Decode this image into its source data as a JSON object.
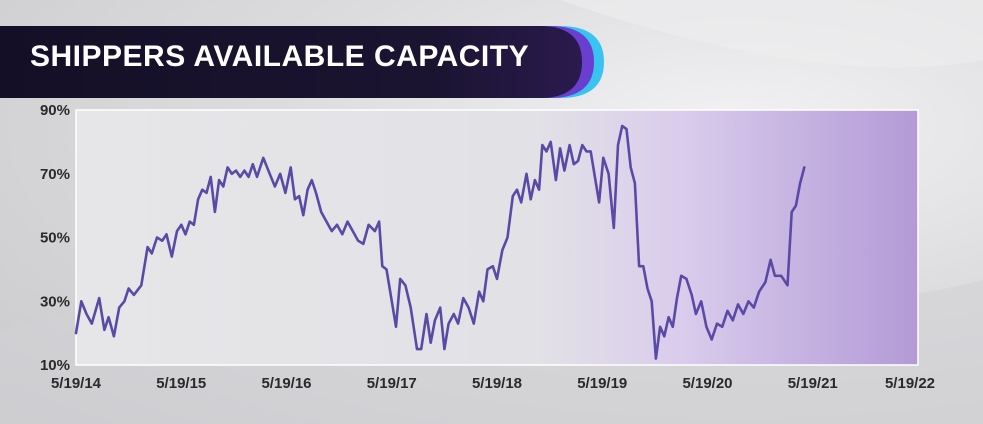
{
  "header": {
    "title": "SHIPPERS AVAILABLE CAPACITY"
  },
  "colors": {
    "line": "#5a4aa6",
    "title_bar": "#1b1431",
    "title_accent": "#3ec7f2",
    "highlight": "#a98fd0"
  },
  "chart_data": {
    "type": "line",
    "title": "SHIPPERS AVAILABLE CAPACITY",
    "xlabel": "",
    "ylabel": "",
    "ylim": [
      10,
      90
    ],
    "xlim": [
      0,
      8
    ],
    "grid": false,
    "legend": "none",
    "y_ticks": [
      10,
      30,
      50,
      70,
      90
    ],
    "y_tick_labels": [
      "10%",
      "30%",
      "50%",
      "70%",
      "90%"
    ],
    "x_ticks": [
      0,
      1,
      2,
      3,
      4,
      5,
      6,
      7,
      8
    ],
    "x_tick_labels": [
      "5/19/14",
      "5/19/15",
      "5/19/16",
      "5/19/17",
      "5/19/18",
      "5/19/19",
      "5/19/20",
      "5/19/21",
      "5/19/22"
    ],
    "x_unit": "years since 5/19/14",
    "shaded_region": {
      "from": 5.8,
      "to": 8.0
    },
    "series": [
      {
        "values": [
          [
            0.0,
            20
          ],
          [
            0.05,
            30
          ],
          [
            0.1,
            26
          ],
          [
            0.15,
            23
          ],
          [
            0.22,
            31
          ],
          [
            0.27,
            21
          ],
          [
            0.31,
            25
          ],
          [
            0.36,
            19
          ],
          [
            0.41,
            28
          ],
          [
            0.46,
            30
          ],
          [
            0.5,
            34
          ],
          [
            0.55,
            32
          ],
          [
            0.62,
            35
          ],
          [
            0.68,
            47
          ],
          [
            0.72,
            45
          ],
          [
            0.77,
            50
          ],
          [
            0.82,
            49
          ],
          [
            0.86,
            51
          ],
          [
            0.91,
            44
          ],
          [
            0.96,
            52
          ],
          [
            1.0,
            54
          ],
          [
            1.04,
            51
          ],
          [
            1.08,
            55
          ],
          [
            1.12,
            54
          ],
          [
            1.16,
            62
          ],
          [
            1.2,
            65
          ],
          [
            1.24,
            64
          ],
          [
            1.28,
            69
          ],
          [
            1.32,
            58
          ],
          [
            1.36,
            68
          ],
          [
            1.4,
            66
          ],
          [
            1.44,
            72
          ],
          [
            1.48,
            70
          ],
          [
            1.52,
            71
          ],
          [
            1.56,
            69
          ],
          [
            1.6,
            71
          ],
          [
            1.64,
            69
          ],
          [
            1.68,
            73
          ],
          [
            1.72,
            69
          ],
          [
            1.78,
            75
          ],
          [
            1.84,
            70
          ],
          [
            1.89,
            66
          ],
          [
            1.94,
            70
          ],
          [
            1.99,
            64
          ],
          [
            2.04,
            72
          ],
          [
            2.08,
            62
          ],
          [
            2.12,
            63
          ],
          [
            2.16,
            57
          ],
          [
            2.2,
            65
          ],
          [
            2.24,
            68
          ],
          [
            2.28,
            64
          ],
          [
            2.33,
            58
          ],
          [
            2.38,
            55
          ],
          [
            2.43,
            52
          ],
          [
            2.48,
            54
          ],
          [
            2.53,
            51
          ],
          [
            2.58,
            55
          ],
          [
            2.63,
            52
          ],
          [
            2.68,
            49
          ],
          [
            2.73,
            48
          ],
          [
            2.78,
            54
          ],
          [
            2.84,
            52
          ],
          [
            2.88,
            55
          ],
          [
            2.91,
            41
          ],
          [
            2.95,
            40
          ],
          [
            3.0,
            30
          ],
          [
            3.04,
            22
          ],
          [
            3.08,
            37
          ],
          [
            3.13,
            35
          ],
          [
            3.18,
            28
          ],
          [
            3.24,
            15
          ],
          [
            3.28,
            15
          ],
          [
            3.33,
            26
          ],
          [
            3.37,
            17
          ],
          [
            3.41,
            24
          ],
          [
            3.46,
            28
          ],
          [
            3.5,
            15
          ],
          [
            3.54,
            23
          ],
          [
            3.59,
            26
          ],
          [
            3.63,
            23
          ],
          [
            3.68,
            31
          ],
          [
            3.73,
            28
          ],
          [
            3.78,
            23
          ],
          [
            3.83,
            33
          ],
          [
            3.87,
            30
          ],
          [
            3.91,
            40
          ],
          [
            3.96,
            41
          ],
          [
            4.0,
            37
          ],
          [
            4.05,
            46
          ],
          [
            4.1,
            50
          ],
          [
            4.15,
            63
          ],
          [
            4.19,
            65
          ],
          [
            4.23,
            61
          ],
          [
            4.28,
            70
          ],
          [
            4.32,
            62
          ],
          [
            4.36,
            68
          ],
          [
            4.4,
            65
          ],
          [
            4.43,
            79
          ],
          [
            4.47,
            77
          ],
          [
            4.51,
            80
          ],
          [
            4.56,
            68
          ],
          [
            4.6,
            78
          ],
          [
            4.64,
            71
          ],
          [
            4.69,
            79
          ],
          [
            4.73,
            73
          ],
          [
            4.77,
            74
          ],
          [
            4.81,
            79
          ],
          [
            4.85,
            77
          ],
          [
            4.89,
            77
          ],
          [
            4.93,
            69
          ],
          [
            4.97,
            61
          ],
          [
            5.01,
            75
          ],
          [
            5.06,
            70
          ],
          [
            5.11,
            53
          ],
          [
            5.15,
            79
          ],
          [
            5.19,
            85
          ],
          [
            5.23,
            84
          ],
          [
            5.27,
            72
          ],
          [
            5.31,
            67
          ],
          [
            5.35,
            41
          ],
          [
            5.39,
            41
          ],
          [
            5.43,
            34
          ],
          [
            5.47,
            30
          ],
          [
            5.51,
            12
          ],
          [
            5.55,
            22
          ],
          [
            5.59,
            19
          ],
          [
            5.63,
            25
          ],
          [
            5.67,
            22
          ],
          [
            5.71,
            31
          ],
          [
            5.75,
            38
          ],
          [
            5.8,
            37
          ],
          [
            5.85,
            32
          ],
          [
            5.89,
            26
          ],
          [
            5.94,
            30
          ],
          [
            5.99,
            22
          ],
          [
            6.04,
            18
          ],
          [
            6.09,
            23
          ],
          [
            6.14,
            22
          ],
          [
            6.19,
            27
          ],
          [
            6.24,
            24
          ],
          [
            6.29,
            29
          ],
          [
            6.34,
            26
          ],
          [
            6.39,
            30
          ],
          [
            6.44,
            28
          ],
          [
            6.49,
            33
          ],
          [
            6.55,
            36
          ],
          [
            6.6,
            43
          ],
          [
            6.64,
            38
          ],
          [
            6.7,
            38
          ],
          [
            6.76,
            35
          ],
          [
            6.8,
            58
          ],
          [
            6.84,
            60
          ],
          [
            6.88,
            67
          ],
          [
            6.92,
            72
          ]
        ]
      }
    ]
  }
}
